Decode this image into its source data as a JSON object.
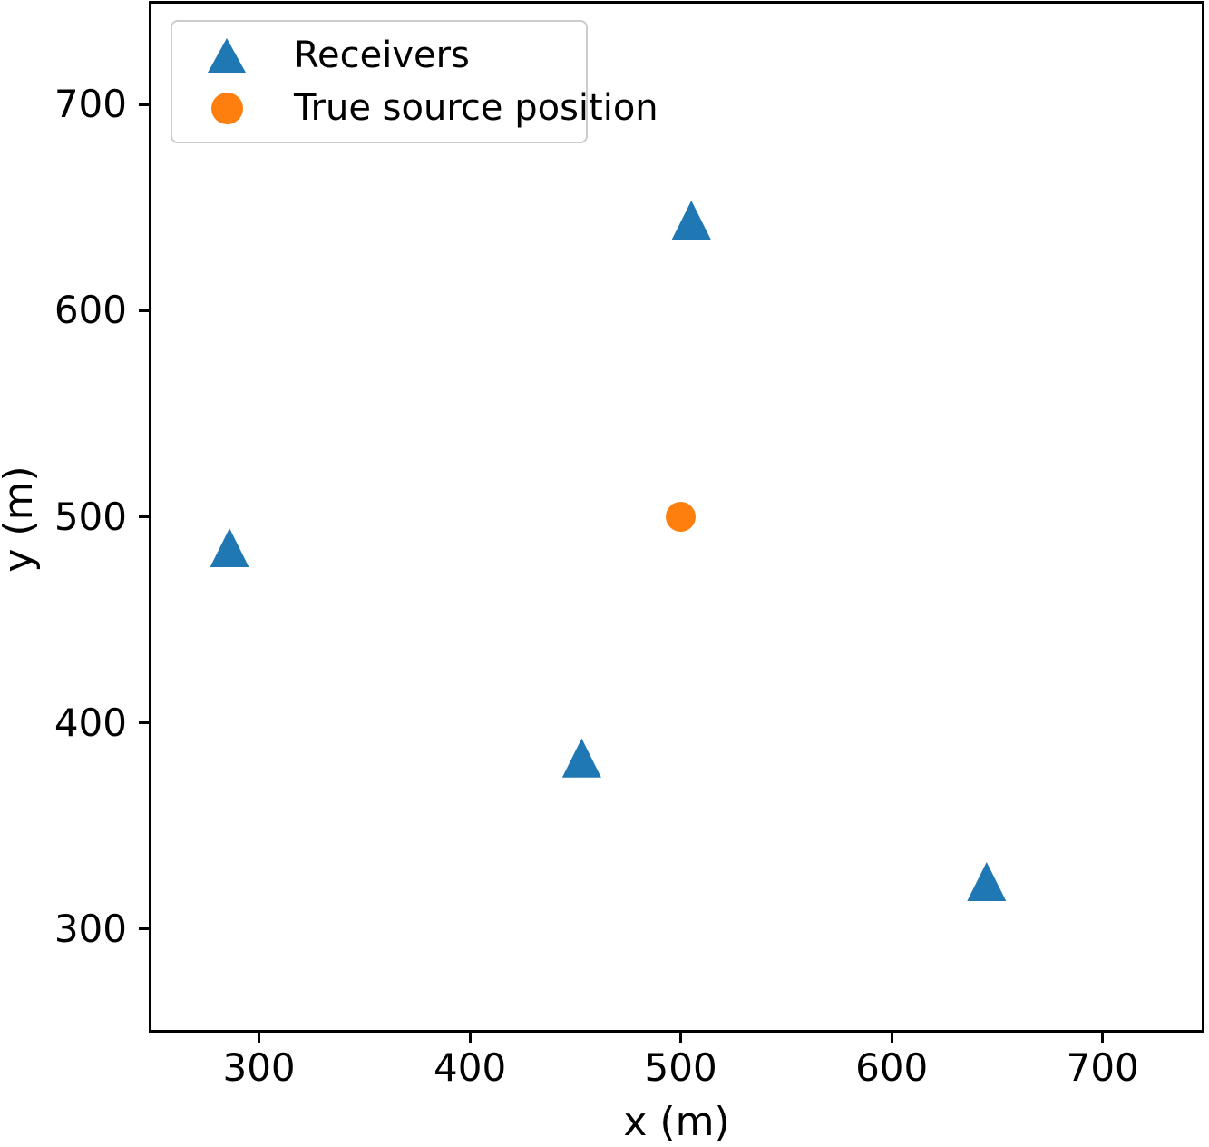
{
  "figure": {
    "background": "#ffffff"
  },
  "axes": {
    "xlabel": "x (m)",
    "ylabel": "y (m)",
    "x_ticks": [
      300,
      400,
      500,
      600,
      700
    ],
    "y_ticks": [
      300,
      400,
      500,
      600,
      700
    ],
    "spine_color": "#000000",
    "grid": false
  },
  "legend": {
    "position": "upper left",
    "border_color": "#cccccc",
    "items": [
      {
        "label": "Receivers",
        "marker": "triangle",
        "color": "#1f77b4"
      },
      {
        "label": "True source position",
        "marker": "circle",
        "color": "#ff7f0e"
      }
    ]
  },
  "chart_data": {
    "type": "scatter",
    "title": "",
    "xlabel": "x (m)",
    "ylabel": "y (m)",
    "xlim": [
      249,
      747
    ],
    "ylim": [
      251,
      749
    ],
    "grid": false,
    "legend_position": "upper left",
    "series": [
      {
        "name": "Receivers",
        "marker": "triangle",
        "color": "#1f77b4",
        "points": [
          [
            505,
            644
          ],
          [
            286,
            485
          ],
          [
            453,
            383
          ],
          [
            645,
            323
          ]
        ]
      },
      {
        "name": "True source position",
        "marker": "circle",
        "color": "#ff7f0e",
        "points": [
          [
            500,
            500
          ]
        ]
      }
    ]
  }
}
